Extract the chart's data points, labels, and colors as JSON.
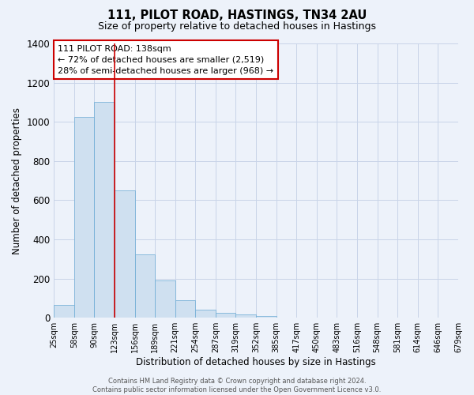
{
  "title": "111, PILOT ROAD, HASTINGS, TN34 2AU",
  "subtitle": "Size of property relative to detached houses in Hastings",
  "xlabel": "Distribution of detached houses by size in Hastings",
  "ylabel": "Number of detached properties",
  "bar_values": [
    65,
    1025,
    1100,
    650,
    325,
    190,
    90,
    42,
    25,
    18,
    10,
    0,
    0,
    0,
    0,
    0,
    0,
    0,
    0,
    0
  ],
  "bar_labels": [
    "25sqm",
    "58sqm",
    "90sqm",
    "123sqm",
    "156sqm",
    "189sqm",
    "221sqm",
    "254sqm",
    "287sqm",
    "319sqm",
    "352sqm",
    "385sqm",
    "417sqm",
    "450sqm",
    "483sqm",
    "516sqm",
    "548sqm",
    "581sqm",
    "614sqm",
    "646sqm",
    "679sqm"
  ],
  "bar_color": "#cfe0f0",
  "bar_edge_color": "#6aaad4",
  "vline_x": 3,
  "vline_color": "#cc0000",
  "annotation_title": "111 PILOT ROAD: 138sqm",
  "annotation_line1": "← 72% of detached houses are smaller (2,519)",
  "annotation_line2": "28% of semi-detached houses are larger (968) →",
  "annotation_box_color": "#ffffff",
  "annotation_box_edge": "#cc0000",
  "ylim": [
    0,
    1400
  ],
  "yticks": [
    0,
    200,
    400,
    600,
    800,
    1000,
    1200,
    1400
  ],
  "grid_color": "#c8d4e8",
  "background_color": "#edf2fa",
  "footer_line1": "Contains HM Land Registry data © Crown copyright and database right 2024.",
  "footer_line2": "Contains public sector information licensed under the Open Government Licence v3.0."
}
